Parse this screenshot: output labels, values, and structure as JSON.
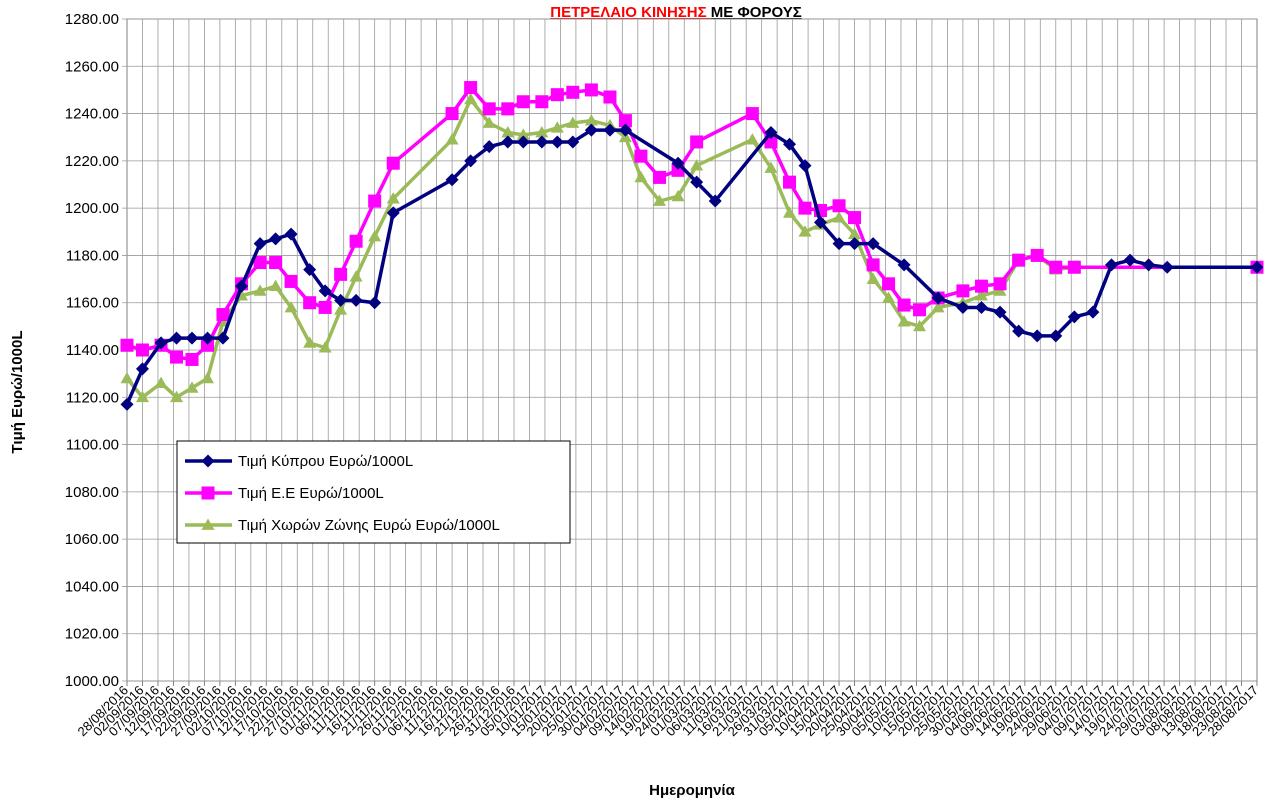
{
  "chart_data": {
    "type": "line",
    "title": {
      "part1": "ΠΕΤΡΕΛΑΙΟ ΚΙΝΗΣΗΣ ",
      "part2": "ΜΕ  ΦΟΡΟΥΣ",
      "part1_color": "#ff0000",
      "part2_color": "#000000"
    },
    "xlabel": "Ημερομηνία",
    "ylabel": "Τιμή Ευρώ/1000L",
    "ylim": [
      1000,
      1280
    ],
    "ytick_step": 20,
    "ytick_labels": [
      "1000.00",
      "1020.00",
      "1040.00",
      "1060.00",
      "1080.00",
      "1100.00",
      "1120.00",
      "1140.00",
      "1160.00",
      "1180.00",
      "1200.00",
      "1220.00",
      "1240.00",
      "1260.00",
      "1280.00"
    ],
    "grid": true,
    "legend_position": "lower-left",
    "x_date_start": "28/08/2016",
    "x_date_end": "28/08/2017",
    "x_tick_labels": [
      "28/08/2016",
      "02/09/2016",
      "07/09/2016",
      "12/09/2016",
      "17/09/2016",
      "22/09/2016",
      "27/09/2016",
      "02/10/2016",
      "07/10/2016",
      "12/10/2016",
      "17/10/2016",
      "22/10/2016",
      "27/10/2016",
      "01/11/2016",
      "06/11/2016",
      "11/11/2016",
      "16/11/2016",
      "21/11/2016",
      "26/11/2016",
      "01/12/2016",
      "06/12/2016",
      "11/12/2016",
      "16/12/2016",
      "21/12/2016",
      "26/12/2016",
      "31/12/2016",
      "05/01/2017",
      "10/01/2017",
      "15/01/2017",
      "20/01/2017",
      "25/01/2017",
      "30/01/2017",
      "04/02/2017",
      "09/02/2017",
      "14/02/2017",
      "19/02/2017",
      "24/02/2017",
      "01/03/2017",
      "06/03/2017",
      "11/03/2017",
      "16/03/2017",
      "21/03/2017",
      "26/03/2017",
      "31/03/2017",
      "05/04/2017",
      "10/04/2017",
      "15/04/2017",
      "20/04/2017",
      "25/04/2017",
      "30/04/2017",
      "05/05/2017",
      "10/05/2017",
      "15/05/2017",
      "20/05/2017",
      "25/05/2017",
      "30/05/2017",
      "04/06/2017",
      "09/06/2017",
      "14/06/2017",
      "19/06/2017",
      "24/06/2017",
      "29/06/2017",
      "04/07/2017",
      "09/07/2017",
      "14/07/2017",
      "19/07/2017",
      "24/07/2017",
      "29/07/2017",
      "03/08/2017",
      "08/08/2017",
      "13/08/2017",
      "18/08/2017",
      "23/08/2017",
      "28/08/2017"
    ],
    "series": [
      {
        "name": "Τιμή  Κύπρου  Ευρώ/1000L",
        "color": "#000080",
        "marker": "diamond",
        "points": [
          [
            "28/08/2016",
            1117
          ],
          [
            "02/09/2016",
            1132
          ],
          [
            "08/09/2016",
            1143
          ],
          [
            "13/09/2016",
            1145
          ],
          [
            "18/09/2016",
            1145
          ],
          [
            "23/09/2016",
            1145
          ],
          [
            "28/09/2016",
            1145
          ],
          [
            "04/10/2016",
            1167
          ],
          [
            "10/10/2016",
            1185
          ],
          [
            "15/10/2016",
            1187
          ],
          [
            "20/10/2016",
            1189
          ],
          [
            "26/10/2016",
            1174
          ],
          [
            "31/10/2016",
            1165
          ],
          [
            "05/11/2016",
            1161
          ],
          [
            "10/11/2016",
            1161
          ],
          [
            "16/11/2016",
            1160
          ],
          [
            "22/11/2016",
            1198
          ],
          [
            "11/12/2016",
            1212
          ],
          [
            "17/12/2016",
            1220
          ],
          [
            "23/12/2016",
            1226
          ],
          [
            "29/12/2016",
            1228
          ],
          [
            "03/01/2017",
            1228
          ],
          [
            "09/01/2017",
            1228
          ],
          [
            "14/01/2017",
            1228
          ],
          [
            "19/01/2017",
            1228
          ],
          [
            "25/01/2017",
            1233
          ],
          [
            "31/01/2017",
            1233
          ],
          [
            "05/02/2017",
            1233
          ],
          [
            "22/02/2017",
            1219
          ],
          [
            "28/02/2017",
            1211
          ],
          [
            "06/03/2017",
            1203
          ],
          [
            "24/03/2017",
            1232
          ],
          [
            "30/03/2017",
            1227
          ],
          [
            "04/04/2017",
            1218
          ],
          [
            "09/04/2017",
            1194
          ],
          [
            "15/04/2017",
            1185
          ],
          [
            "20/04/2017",
            1185
          ],
          [
            "26/04/2017",
            1185
          ],
          [
            "06/05/2017",
            1176
          ],
          [
            "17/05/2017",
            1162
          ],
          [
            "25/05/2017",
            1158
          ],
          [
            "31/05/2017",
            1158
          ],
          [
            "06/06/2017",
            1156
          ],
          [
            "12/06/2017",
            1148
          ],
          [
            "18/06/2017",
            1146
          ],
          [
            "24/06/2017",
            1146
          ],
          [
            "30/06/2017",
            1154
          ],
          [
            "06/07/2017",
            1156
          ],
          [
            "12/07/2017",
            1176
          ],
          [
            "18/07/2017",
            1178
          ],
          [
            "24/07/2017",
            1176
          ],
          [
            "30/07/2017",
            1175
          ],
          [
            "28/08/2017",
            1175
          ]
        ]
      },
      {
        "name": "Τιμή  Ε.Ε Ευρώ/1000L",
        "color": "#ff00ff",
        "marker": "square",
        "points": [
          [
            "28/08/2016",
            1142
          ],
          [
            "02/09/2016",
            1140
          ],
          [
            "08/09/2016",
            1142
          ],
          [
            "13/09/2016",
            1137
          ],
          [
            "18/09/2016",
            1136
          ],
          [
            "23/09/2016",
            1142
          ],
          [
            "28/09/2016",
            1155
          ],
          [
            "04/10/2016",
            1168
          ],
          [
            "10/10/2016",
            1177
          ],
          [
            "15/10/2016",
            1177
          ],
          [
            "20/10/2016",
            1169
          ],
          [
            "26/10/2016",
            1160
          ],
          [
            "31/10/2016",
            1158
          ],
          [
            "05/11/2016",
            1172
          ],
          [
            "10/11/2016",
            1186
          ],
          [
            "16/11/2016",
            1203
          ],
          [
            "22/11/2016",
            1219
          ],
          [
            "11/12/2016",
            1240
          ],
          [
            "17/12/2016",
            1251
          ],
          [
            "23/12/2016",
            1242
          ],
          [
            "29/12/2016",
            1242
          ],
          [
            "03/01/2017",
            1245
          ],
          [
            "09/01/2017",
            1245
          ],
          [
            "14/01/2017",
            1248
          ],
          [
            "19/01/2017",
            1249
          ],
          [
            "25/01/2017",
            1250
          ],
          [
            "31/01/2017",
            1247
          ],
          [
            "05/02/2017",
            1237
          ],
          [
            "10/02/2017",
            1222
          ],
          [
            "16/02/2017",
            1213
          ],
          [
            "22/02/2017",
            1216
          ],
          [
            "28/02/2017",
            1228
          ],
          [
            "18/03/2017",
            1240
          ],
          [
            "24/03/2017",
            1228
          ],
          [
            "30/03/2017",
            1211
          ],
          [
            "04/04/2017",
            1200
          ],
          [
            "09/04/2017",
            1199
          ],
          [
            "15/04/2017",
            1201
          ],
          [
            "20/04/2017",
            1196
          ],
          [
            "26/04/2017",
            1176
          ],
          [
            "01/05/2017",
            1168
          ],
          [
            "06/05/2017",
            1159
          ],
          [
            "11/05/2017",
            1157
          ],
          [
            "17/05/2017",
            1162
          ],
          [
            "25/05/2017",
            1165
          ],
          [
            "31/05/2017",
            1167
          ],
          [
            "06/06/2017",
            1168
          ],
          [
            "12/06/2017",
            1178
          ],
          [
            "18/06/2017",
            1180
          ],
          [
            "24/06/2017",
            1175
          ],
          [
            "30/06/2017",
            1175
          ],
          [
            "28/08/2017",
            1175
          ]
        ]
      },
      {
        "name": "Τιμή  Χωρών  Ζώνης  Ευρώ  Ευρώ/1000L",
        "color": "#9bbb59",
        "marker": "triangle",
        "points": [
          [
            "28/08/2016",
            1128
          ],
          [
            "02/09/2016",
            1120
          ],
          [
            "08/09/2016",
            1126
          ],
          [
            "13/09/2016",
            1120
          ],
          [
            "18/09/2016",
            1124
          ],
          [
            "23/09/2016",
            1128
          ],
          [
            "28/09/2016",
            1152
          ],
          [
            "04/10/2016",
            1163
          ],
          [
            "10/10/2016",
            1165
          ],
          [
            "15/10/2016",
            1167
          ],
          [
            "20/10/2016",
            1158
          ],
          [
            "26/10/2016",
            1143
          ],
          [
            "31/10/2016",
            1141
          ],
          [
            "05/11/2016",
            1157
          ],
          [
            "10/11/2016",
            1171
          ],
          [
            "16/11/2016",
            1188
          ],
          [
            "22/11/2016",
            1204
          ],
          [
            "11/12/2016",
            1229
          ],
          [
            "17/12/2016",
            1246
          ],
          [
            "23/12/2016",
            1236
          ],
          [
            "29/12/2016",
            1232
          ],
          [
            "03/01/2017",
            1231
          ],
          [
            "09/01/2017",
            1232
          ],
          [
            "14/01/2017",
            1234
          ],
          [
            "19/01/2017",
            1236
          ],
          [
            "25/01/2017",
            1237
          ],
          [
            "31/01/2017",
            1235
          ],
          [
            "05/02/2017",
            1230
          ],
          [
            "10/02/2017",
            1213
          ],
          [
            "16/02/2017",
            1203
          ],
          [
            "22/02/2017",
            1205
          ],
          [
            "28/02/2017",
            1218
          ],
          [
            "18/03/2017",
            1229
          ],
          [
            "24/03/2017",
            1217
          ],
          [
            "30/03/2017",
            1198
          ],
          [
            "04/04/2017",
            1190
          ],
          [
            "09/04/2017",
            1193
          ],
          [
            "15/04/2017",
            1196
          ],
          [
            "20/04/2017",
            1189
          ],
          [
            "26/04/2017",
            1170
          ],
          [
            "01/05/2017",
            1162
          ],
          [
            "06/05/2017",
            1152
          ],
          [
            "11/05/2017",
            1150
          ],
          [
            "17/05/2017",
            1158
          ],
          [
            "25/05/2017",
            1160
          ],
          [
            "31/05/2017",
            1163
          ],
          [
            "06/06/2017",
            1165
          ],
          [
            "12/06/2017",
            1178
          ],
          [
            "18/06/2017",
            1180
          ],
          [
            "24/06/2017",
            1174
          ],
          [
            "30/06/2017",
            1175
          ],
          [
            "28/08/2017",
            1175
          ]
        ]
      }
    ]
  }
}
